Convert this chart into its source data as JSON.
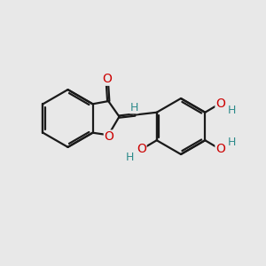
{
  "background_color": "#e8e8e8",
  "bond_color": "#1a1a1a",
  "oxygen_color": "#cc0000",
  "hydrogen_color": "#2e8b8b",
  "bond_lw": 1.6,
  "font_size_atom": 10,
  "figsize": [
    3.0,
    3.0
  ],
  "dpi": 100,
  "xlim": [
    0,
    10
  ],
  "ylim": [
    0,
    10
  ]
}
